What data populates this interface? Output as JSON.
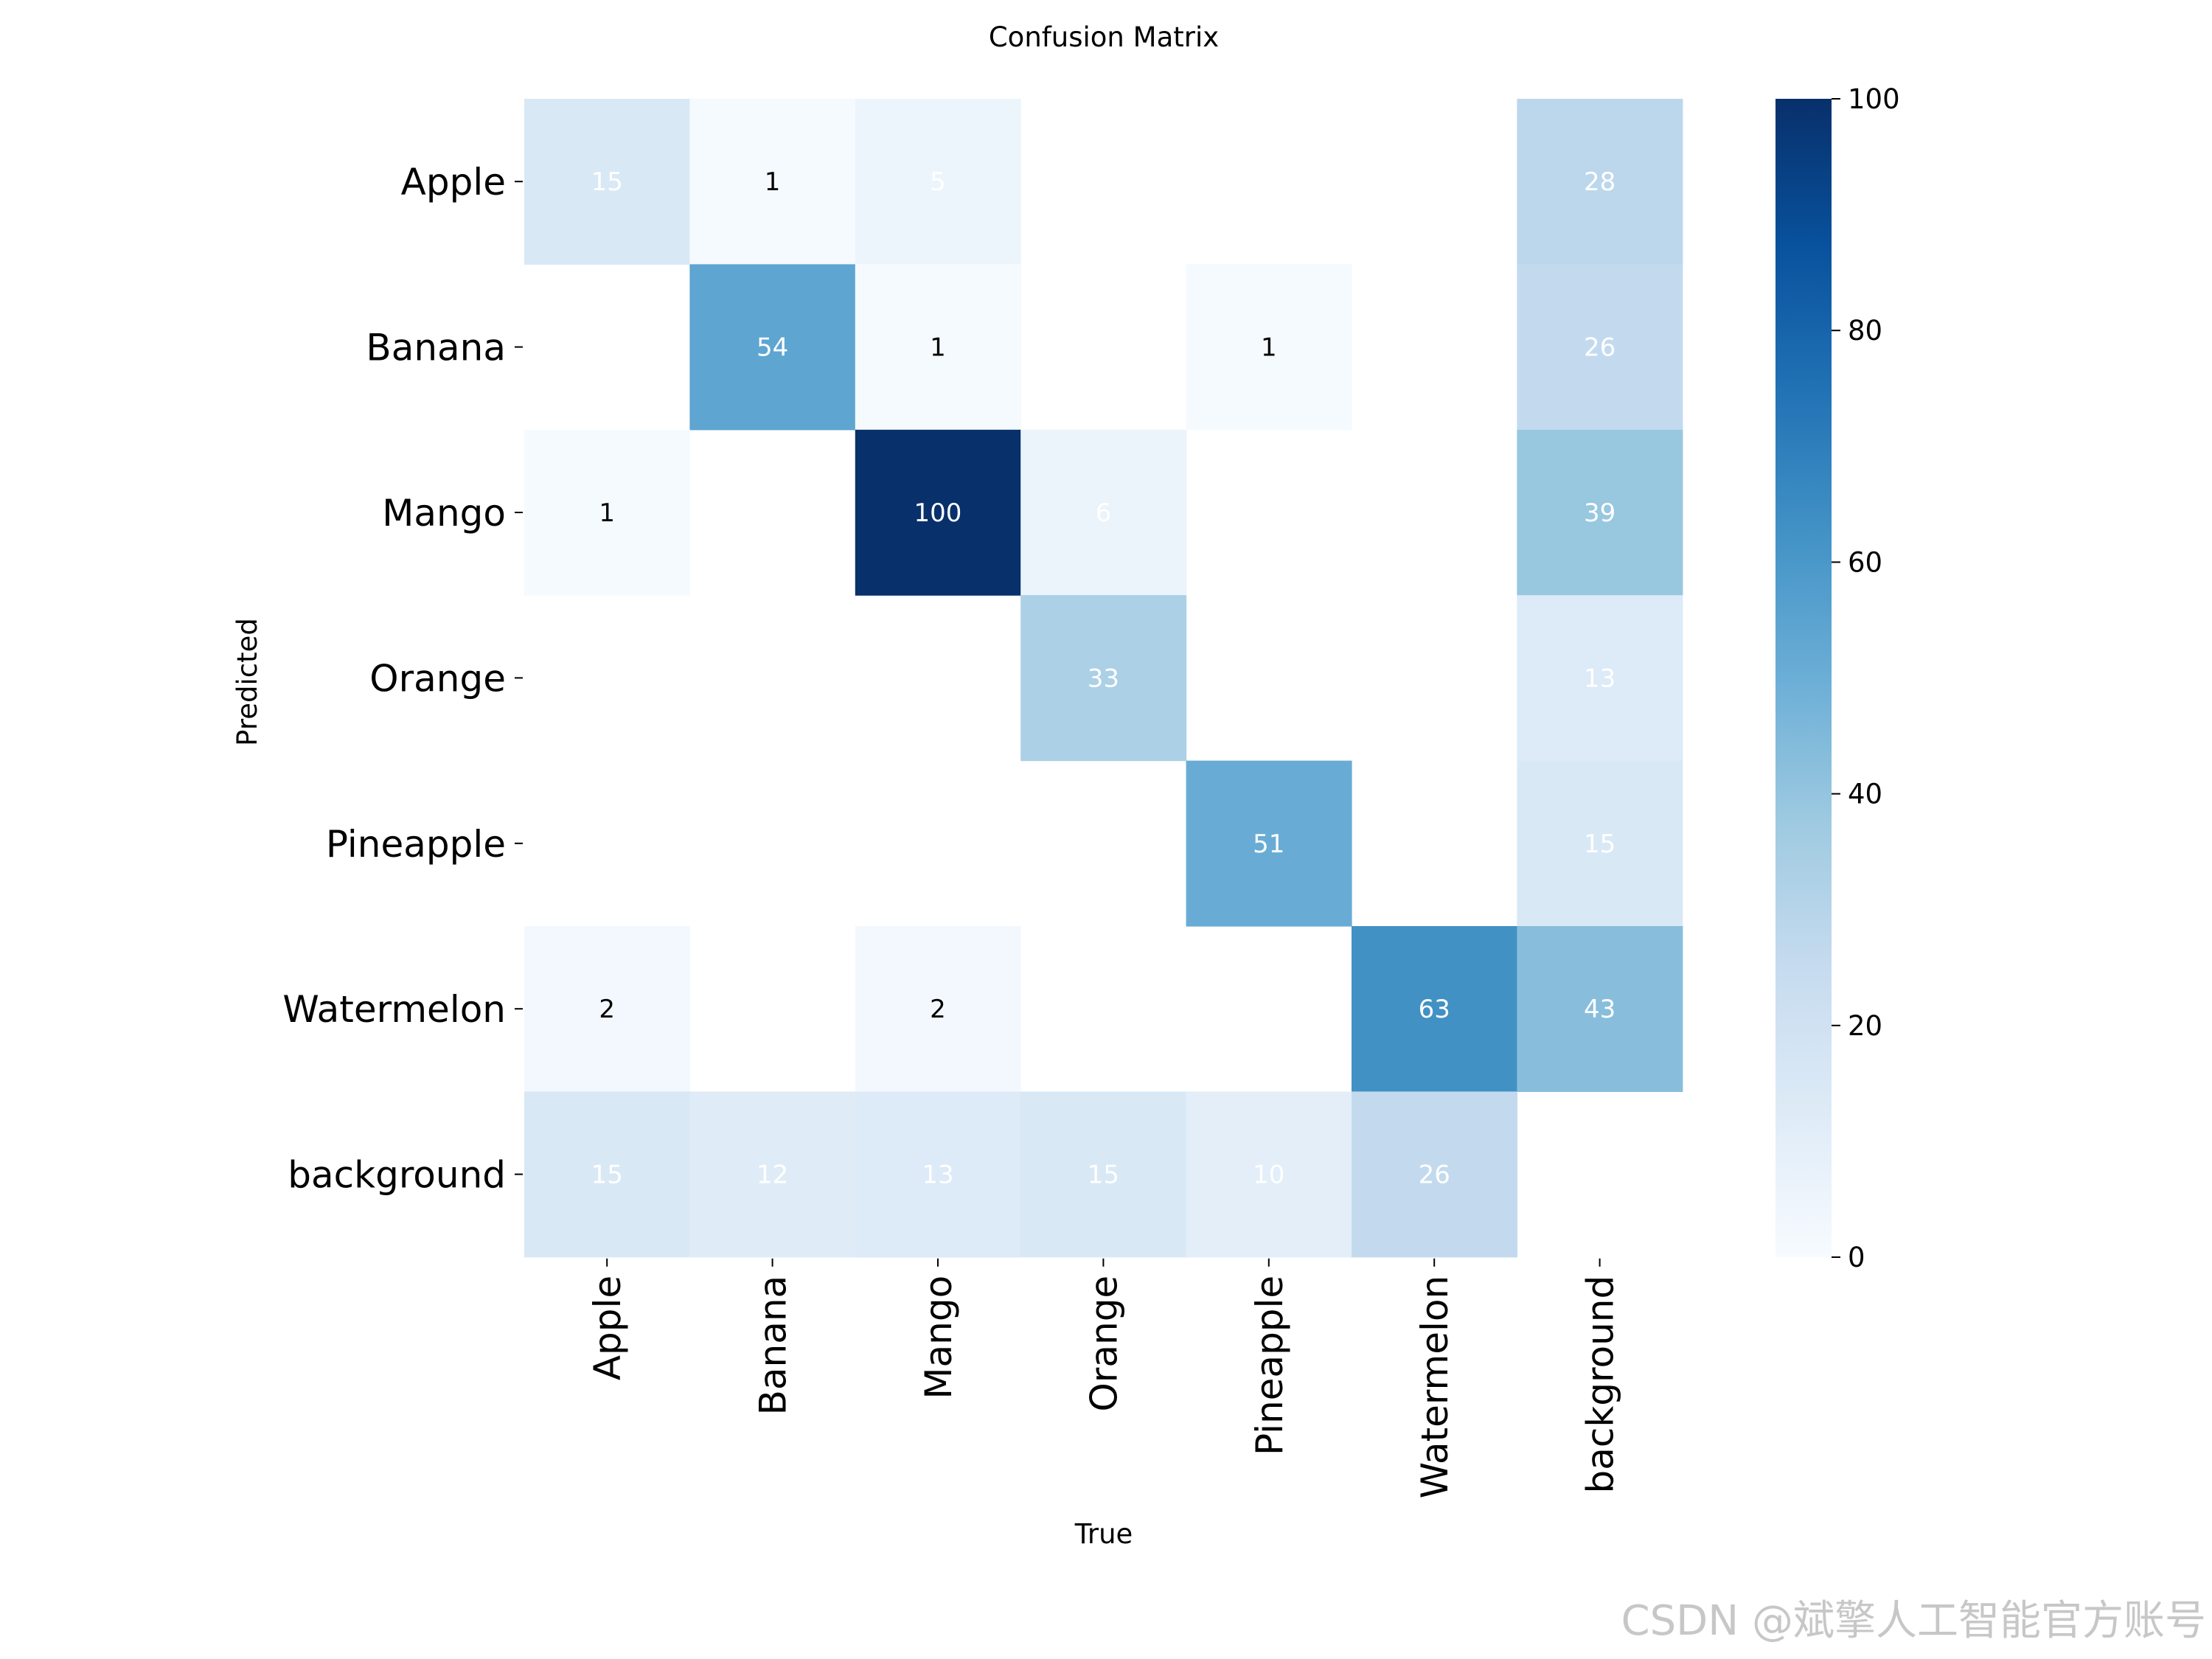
{
  "chart_data": {
    "type": "heatmap",
    "title": "Confusion Matrix",
    "xlabel": "True",
    "ylabel": "Predicted",
    "x_categories": [
      "Apple",
      "Banana",
      "Mango",
      "Orange",
      "Pineapple",
      "Watermelon",
      "background"
    ],
    "y_categories": [
      "Apple",
      "Banana",
      "Mango",
      "Orange",
      "Pineapple",
      "Watermelon",
      "background"
    ],
    "matrix": [
      [
        15,
        1,
        5,
        null,
        null,
        null,
        28
      ],
      [
        null,
        54,
        1,
        null,
        1,
        null,
        26
      ],
      [
        1,
        null,
        100,
        6,
        null,
        null,
        39
      ],
      [
        null,
        null,
        null,
        33,
        null,
        null,
        13
      ],
      [
        null,
        null,
        null,
        null,
        51,
        null,
        15
      ],
      [
        2,
        null,
        2,
        null,
        null,
        63,
        43
      ],
      [
        15,
        12,
        13,
        15,
        10,
        26,
        null
      ]
    ],
    "colorscale": "Blues",
    "colorbar": {
      "range": [
        0,
        100
      ],
      "ticks": [
        0,
        20,
        40,
        60,
        80,
        100
      ]
    }
  },
  "watermark": "CSDN @斌擎人工智能官方账号"
}
